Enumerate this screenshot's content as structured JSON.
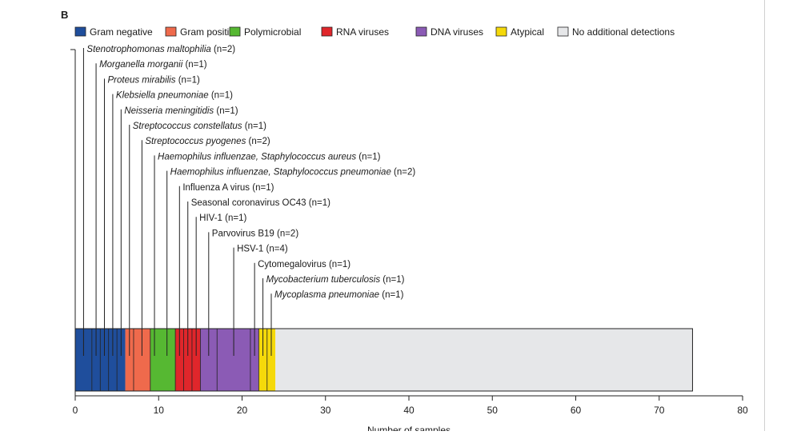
{
  "panel_label": "B",
  "colors": {
    "gram_negative": "#1f4e9c",
    "gram_positive": "#ef6a4c",
    "polymicrobial": "#56b832",
    "rna_viruses": "#e0262b",
    "dna_viruses": "#8b5bb5",
    "atypical": "#f5d90a",
    "no_detection": "#e6e7e9"
  },
  "chart_data": {
    "type": "bar",
    "orientation": "horizontal-stacked",
    "title": "",
    "xlabel": "Number of samples",
    "ylabel": "",
    "xlim": [
      0,
      80
    ],
    "xticks": [
      0,
      10,
      20,
      30,
      40,
      50,
      60,
      70,
      80
    ],
    "grid": false,
    "legend_position": "top",
    "legend": [
      {
        "name": "Gram negative",
        "color_key": "gram_negative"
      },
      {
        "name": "Gram positive",
        "color_key": "gram_positive"
      },
      {
        "name": "Polymicrobial",
        "color_key": "polymicrobial"
      },
      {
        "name": "RNA viruses",
        "color_key": "rna_viruses"
      },
      {
        "name": "DNA viruses",
        "color_key": "dna_viruses"
      },
      {
        "name": "Atypical",
        "color_key": "atypical"
      },
      {
        "name": "No additional detections",
        "color_key": "no_detection"
      }
    ],
    "segments": [
      {
        "start": 0,
        "value": 6,
        "category": "gram_negative"
      },
      {
        "start": 6,
        "value": 3,
        "category": "gram_positive"
      },
      {
        "start": 9,
        "value": 3,
        "category": "polymicrobial"
      },
      {
        "start": 12,
        "value": 3,
        "category": "rna_viruses"
      },
      {
        "start": 15,
        "value": 7,
        "category": "dna_viruses"
      },
      {
        "start": 22,
        "value": 2,
        "category": "atypical"
      },
      {
        "start": 24,
        "value": 50,
        "category": "no_detection"
      }
    ],
    "dividers": [
      2,
      3,
      4,
      5,
      7,
      9,
      12,
      13,
      14,
      15,
      17,
      21,
      22,
      23
    ],
    "annotations": [
      {
        "organism": "Stenotrophomonas maltophilia",
        "count": "(n=2)",
        "italic": true,
        "x": 1
      },
      {
        "organism": "Morganella morganii",
        "count": "(n=1)",
        "italic": true,
        "x": 2.5
      },
      {
        "organism": "Proteus mirabilis",
        "count": "(n=1)",
        "italic": true,
        "x": 3.5
      },
      {
        "organism": "Klebsiella pneumoniae",
        "count": "(n=1)",
        "italic": true,
        "x": 4.5
      },
      {
        "organism": "Neisseria meningitidis",
        "count": "(n=1)",
        "italic": true,
        "x": 5.5
      },
      {
        "organism": "Streptococcus constellatus",
        "count": "(n=1)",
        "italic": true,
        "x": 6.5
      },
      {
        "organism": "Streptococcus pyogenes",
        "count": "(n=2)",
        "italic": true,
        "x": 8
      },
      {
        "organism": "Haemophilus influenzae, Staphylococcus aureus",
        "count": "(n=1)",
        "italic": true,
        "x": 9.5
      },
      {
        "organism": "Haemophilus influenzae, Staphylococcus pneumoniae",
        "count": "(n=2)",
        "italic": true,
        "x": 11
      },
      {
        "organism": "Influenza A virus",
        "count": "(n=1)",
        "italic": false,
        "x": 12.5
      },
      {
        "organism": "Seasonal coronavirus OC43",
        "count": "(n=1)",
        "italic": false,
        "x": 13.5
      },
      {
        "organism": "HIV-1",
        "count": "(n=1)",
        "italic": false,
        "x": 14.5
      },
      {
        "organism": "Parvovirus B19",
        "count": "(n=2)",
        "italic": false,
        "x": 16
      },
      {
        "organism": "HSV-1",
        "count": "(n=4)",
        "italic": false,
        "x": 19
      },
      {
        "organism": "Cytomegalovirus",
        "count": "(n=1)",
        "italic": false,
        "x": 21.5
      },
      {
        "organism": "Mycobacterium tuberculosis",
        "count": "(n=1)",
        "italic": true,
        "x": 22.5
      },
      {
        "organism": "Mycoplasma pneumoniae",
        "count": "(n=1)",
        "italic": true,
        "x": 23.5
      }
    ]
  }
}
